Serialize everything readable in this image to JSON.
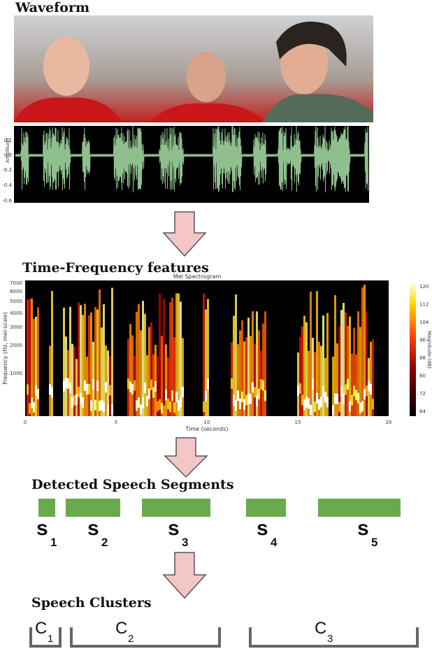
{
  "waveform": {
    "heading": "Waveform",
    "y_axis_label": "Amplitude",
    "y_ticks": [
      "0.2",
      "0.0",
      "-0.2",
      "-0.4",
      "-0.6"
    ]
  },
  "spectrogram": {
    "heading": "Time-Frequency features",
    "title": "Mel Spectrogram",
    "x_label": "Time (seconds)",
    "y_label": "Frequency (Hz, mel-scale)",
    "x_ticks": [
      "0",
      "5",
      "10",
      "15",
      "20"
    ],
    "y_ticks": [
      "7000",
      "6000",
      "5000",
      "4000",
      "3000",
      "2000",
      "1000"
    ],
    "colorbar_label": "Magnitude (dB)",
    "colorbar_ticks": [
      "120",
      "112",
      "104",
      "96",
      "88",
      "80",
      "72",
      "64"
    ]
  },
  "segments": {
    "heading": "Detected Speech Segments",
    "labels": [
      {
        "letter": "s",
        "index": "1"
      },
      {
        "letter": "s",
        "index": "2"
      },
      {
        "letter": "s",
        "index": "3"
      },
      {
        "letter": "s",
        "index": "4"
      },
      {
        "letter": "s",
        "index": "5"
      }
    ]
  },
  "clusters": {
    "heading": "Speech Clusters",
    "labels": [
      {
        "letter": "C",
        "index": "1"
      },
      {
        "letter": "C",
        "index": "2"
      },
      {
        "letter": "C",
        "index": "3"
      }
    ]
  }
}
